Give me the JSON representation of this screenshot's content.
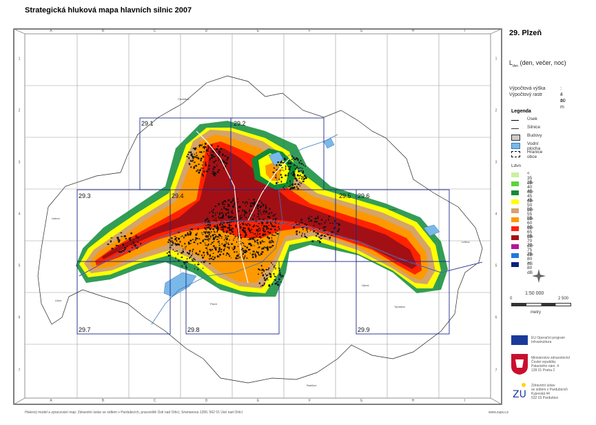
{
  "title": "Strategická hluková mapa hlavních silnic 2007",
  "area": "29.  Plzeň",
  "metric_main": "L",
  "metric_sub": "dvn",
  "metric_rest": " (den, večer, noc)",
  "calc_height_label": "Výpočtová výška",
  "calc_height_value": ":  4  m",
  "calc_raster_label": "Výpočtový rastr",
  "calc_raster_value": ":  10  m",
  "legend_title": "Legenda",
  "legend_items": [
    {
      "label": "Úsek",
      "kind": "line-thick"
    },
    {
      "label": "Silnice",
      "kind": "line-thin"
    },
    {
      "label": "Budovy",
      "kind": "box-gray"
    },
    {
      "label": "Vodní plocha",
      "kind": "box-blue"
    },
    {
      "label": "Hranice obce",
      "kind": "box-dashed"
    }
  ],
  "ldvn_label": "Ldvn",
  "noise_classes": [
    {
      "label": "< 35 dB",
      "color": "#c9f0a0"
    },
    {
      "label": "35-40 dB",
      "color": "#5dd23c"
    },
    {
      "label": "40-45 dB",
      "color": "#0f8c37"
    },
    {
      "label": "45-50 dB",
      "color": "#ffff00"
    },
    {
      "label": "50-55 dB",
      "color": "#d4a46a"
    },
    {
      "label": "55-60 dB",
      "color": "#ff9900"
    },
    {
      "label": "60-65 dB",
      "color": "#ff2200"
    },
    {
      "label": "65-70 dB",
      "color": "#a21015"
    },
    {
      "label": "70-75 dB",
      "color": "#b4159b"
    },
    {
      "label": "75-80 dB",
      "color": "#2277dd"
    },
    {
      "label": "> 80 dB",
      "color": "#0b1f7e"
    }
  ],
  "scale_ratio": "1:50 000",
  "scale_left": "0",
  "scale_right": "2 500",
  "scale_unit": "metry",
  "col_labels": [
    "A",
    "B",
    "C",
    "D",
    "E",
    "F",
    "G",
    "H",
    "I"
  ],
  "row_labels": [
    "1",
    "2",
    "3",
    "4",
    "5",
    "6",
    "7"
  ],
  "tiles": [
    "29.1",
    "29.2",
    "29.3",
    "29.4",
    "29.5",
    "29.6",
    "29.7",
    "29.8",
    "29.9"
  ],
  "place_names": [
    "Chotěšov",
    "Ustron",
    "Litice",
    "Plzeň",
    "Lobzy",
    "Újezd",
    "Tymákov",
    "Letkov",
    "Radčice"
  ],
  "eu_text": "EU Operační program\nInfrastruktura",
  "ministry_text": "Ministerstvo zdravotnictví\nČeské republiky\nPalackého nám. 4\n128 01 Praha 2",
  "zu_text": "Zdravotní ústav\nse sídlem v Pardubicích\nKyjevská 44\n532 03 Pardubice",
  "footer": "Hlukový model a zpracování map: Zdravotní ústav se sídlem v Pardubicích, pracoviště Ústí nad Orlicí, Smetanova 1390, 562 01 Ústí nad Orlicí",
  "footer_right": "www.zupu.cz",
  "colors": {
    "frame": "#555555",
    "grid": "#888888",
    "tile": "#1a2a8a",
    "water": "#7ab8e8",
    "eu_blue": "#1a3a9a"
  }
}
